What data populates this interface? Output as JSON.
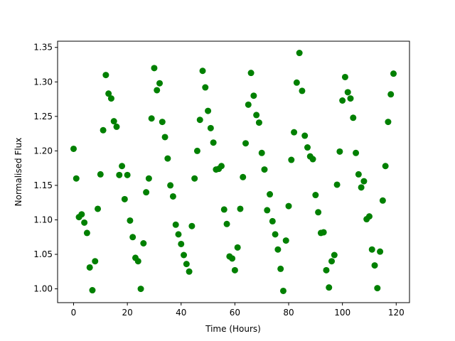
{
  "chart_data": {
    "type": "scatter",
    "x_label": "Time (Hours)",
    "y_label": "Normalised Flux",
    "color": "#008000",
    "x": [
      0,
      1,
      2,
      3,
      4,
      5,
      6,
      7,
      8,
      9,
      10,
      11,
      12,
      13,
      14,
      15,
      16,
      17,
      18,
      19,
      20,
      21,
      22,
      23,
      24,
      25,
      26,
      27,
      28,
      29,
      30,
      31,
      32,
      33,
      34,
      35,
      36,
      37,
      38,
      39,
      40,
      41,
      42,
      43,
      44,
      45,
      46,
      47,
      48,
      49,
      50,
      51,
      52,
      53,
      54,
      55,
      56,
      57,
      58,
      59,
      60,
      61,
      62,
      63,
      64,
      65,
      66,
      67,
      68,
      69,
      70,
      71,
      72,
      73,
      74,
      75,
      76,
      77,
      78,
      79,
      80,
      81,
      82,
      83,
      84,
      85,
      86,
      87,
      88,
      89,
      90,
      91,
      92,
      93,
      94,
      95,
      96,
      97,
      98,
      99,
      100,
      101,
      102,
      103,
      104,
      105,
      106,
      107,
      108,
      109,
      110,
      111,
      112,
      113,
      114,
      115,
      116,
      117,
      118,
      119
    ],
    "values": [
      1.203,
      1.16,
      1.104,
      1.108,
      1.096,
      1.081,
      1.031,
      0.998,
      1.04,
      1.116,
      1.166,
      1.23,
      1.31,
      1.283,
      1.276,
      1.243,
      1.235,
      1.165,
      1.178,
      1.13,
      1.165,
      1.099,
      1.075,
      1.045,
      1.04,
      1.0,
      1.066,
      1.14,
      1.16,
      1.247,
      1.32,
      1.288,
      1.298,
      1.242,
      1.22,
      1.189,
      1.15,
      1.134,
      1.093,
      1.079,
      1.065,
      1.049,
      1.036,
      1.025,
      1.091,
      1.16,
      1.2,
      1.245,
      1.316,
      1.292,
      1.258,
      1.233,
      1.212,
      1.173,
      1.174,
      1.178,
      1.115,
      1.094,
      1.047,
      1.044,
      1.027,
      1.06,
      1.116,
      1.162,
      1.211,
      1.267,
      1.313,
      1.28,
      1.252,
      1.241,
      1.197,
      1.173,
      1.114,
      1.137,
      1.098,
      1.079,
      1.057,
      1.029,
      0.997,
      1.07,
      1.12,
      1.187,
      1.227,
      1.299,
      1.342,
      1.287,
      1.222,
      1.205,
      1.192,
      1.188,
      1.136,
      1.111,
      1.081,
      1.082,
      1.027,
      1.002,
      1.04,
      1.049,
      1.151,
      1.199,
      1.273,
      1.307,
      1.285,
      1.276,
      1.248,
      1.197,
      1.166,
      1.147,
      1.156,
      1.101,
      1.105,
      1.057,
      1.034,
      1.001,
      1.054,
      1.128,
      1.178,
      1.242,
      1.282,
      1.312
    ],
    "xlim": [
      -5.95,
      124.95
    ],
    "xticks": [
      0,
      20,
      40,
      60,
      80,
      100,
      120
    ],
    "ylim": [
      0.98,
      1.359
    ],
    "yticks": [
      {
        "value": 1.0,
        "label": "1.00"
      },
      {
        "value": 1.05,
        "label": "1.05"
      },
      {
        "value": 1.1,
        "label": "1.10"
      },
      {
        "value": 1.15,
        "label": "1.15"
      },
      {
        "value": 1.2,
        "label": "1.20"
      },
      {
        "value": 1.25,
        "label": "1.25"
      },
      {
        "value": 1.3,
        "label": "1.30"
      },
      {
        "value": 1.35,
        "label": "1.35"
      }
    ],
    "grid": false
  }
}
